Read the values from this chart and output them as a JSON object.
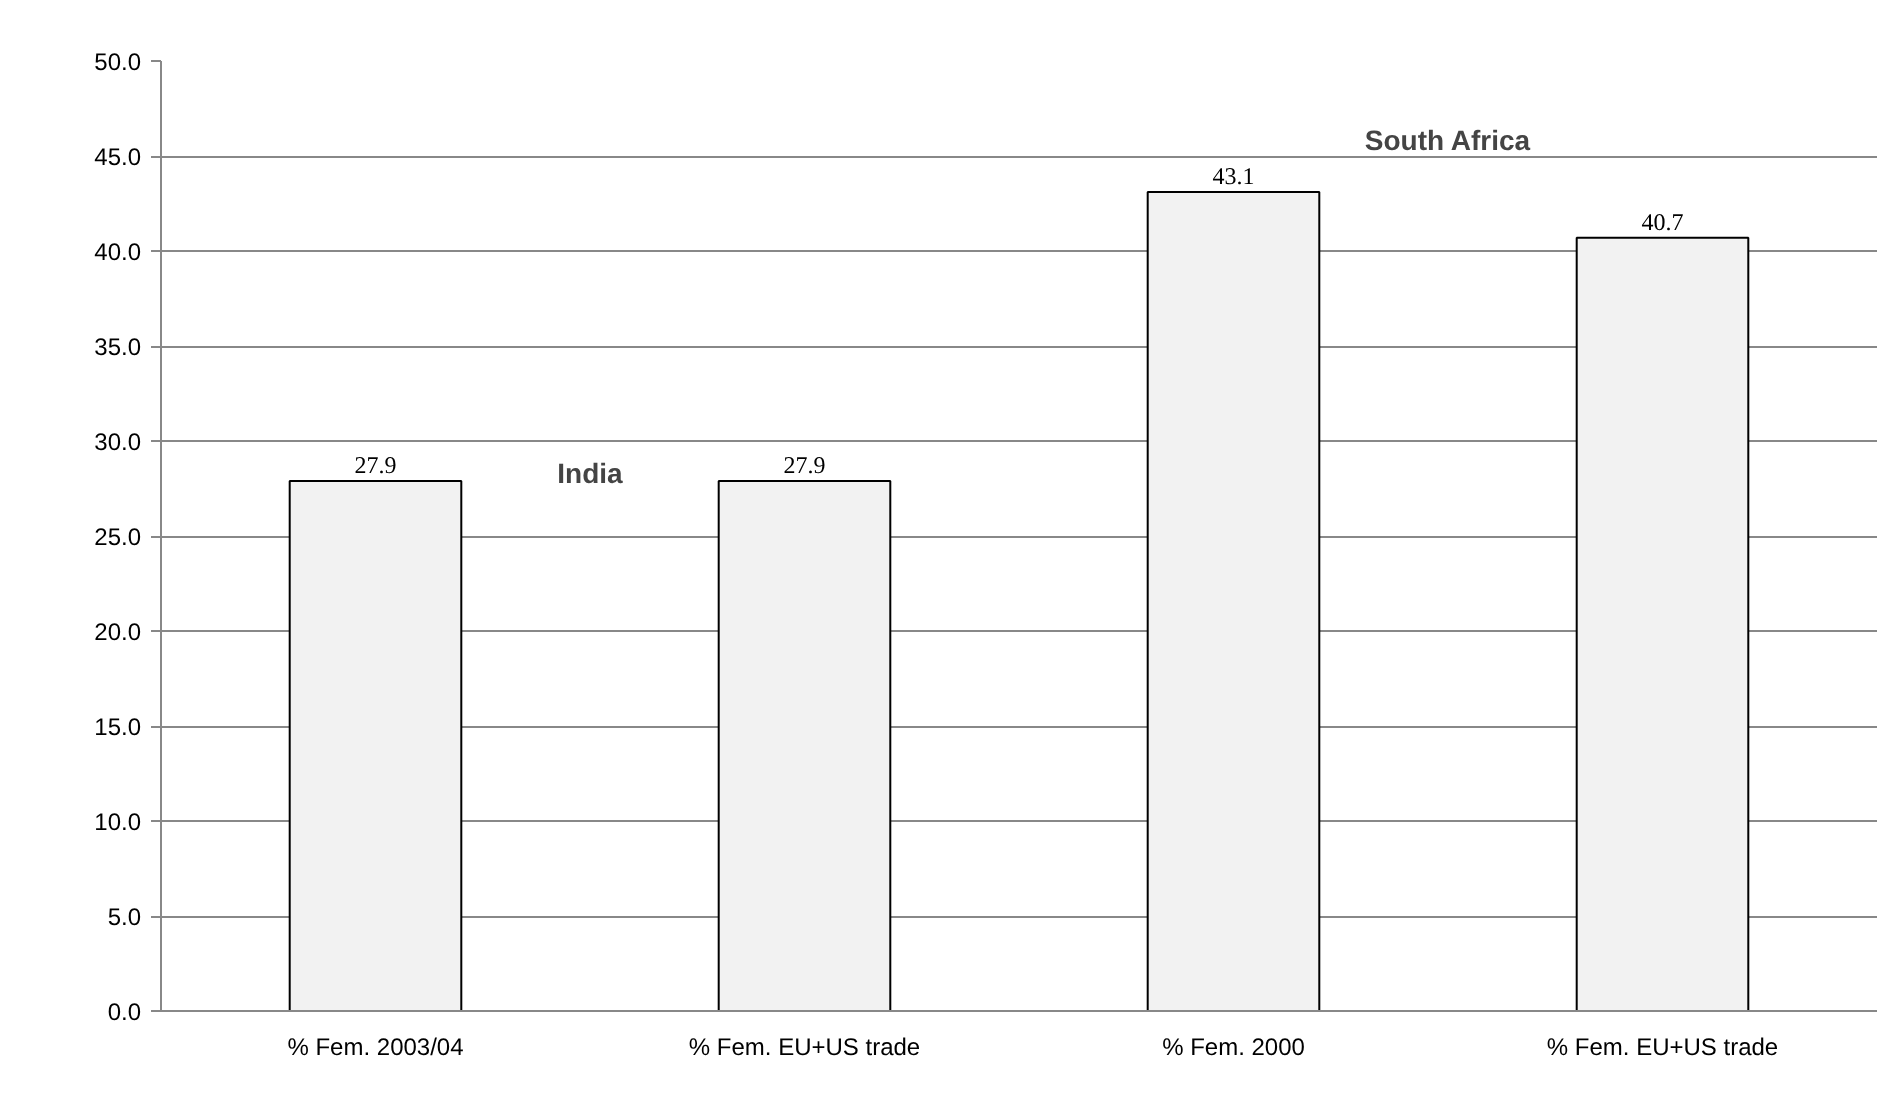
{
  "chart_data": {
    "type": "bar",
    "categories": [
      "% Fem. 2003/04",
      "% Fem. EU+US trade",
      "% Fem. 2000",
      "% Fem. EU+US trade"
    ],
    "values": [
      27.9,
      27.9,
      43.1,
      40.7
    ],
    "color": "#f2f2f2",
    "ylim": [
      0,
      50
    ],
    "yticks": [
      {
        "value": 0,
        "label": "0.0"
      },
      {
        "value": 5,
        "label": "5.0"
      },
      {
        "value": 10,
        "label": "10.0"
      },
      {
        "value": 15,
        "label": "15.0"
      },
      {
        "value": 20,
        "label": "20.0"
      },
      {
        "value": 25,
        "label": "25.0"
      },
      {
        "value": 30,
        "label": "30.0"
      },
      {
        "value": 35,
        "label": "35.0"
      },
      {
        "value": 40,
        "label": "40.0"
      },
      {
        "value": 45,
        "label": "45.0"
      },
      {
        "value": 50,
        "label": "50.0"
      }
    ],
    "annotations": [
      "India",
      "South Africa"
    ],
    "data_labels": true,
    "grid": "y"
  }
}
